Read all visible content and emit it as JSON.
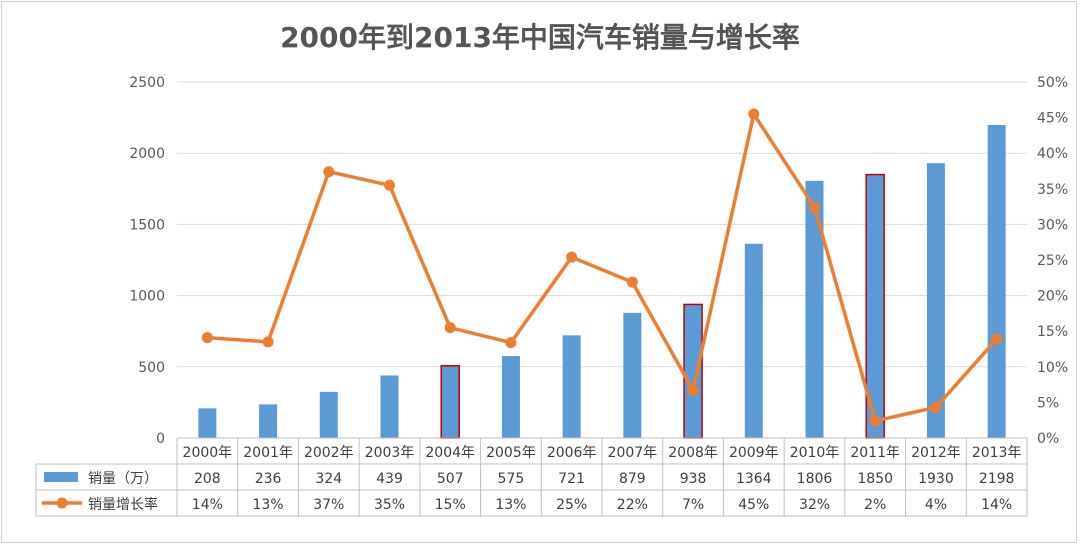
{
  "chart_data": {
    "type": "bar",
    "title": "2000年到2013年中国汽车销量与增长率",
    "categories": [
      "2000年",
      "2001年",
      "2002年",
      "2003年",
      "2004年",
      "2005年",
      "2006年",
      "2007年",
      "2008年",
      "2009年",
      "2010年",
      "2011年",
      "2012年",
      "2013年"
    ],
    "y_left": {
      "ylim": [
        0,
        2500
      ],
      "ticks": [
        "0",
        "500",
        "1000",
        "1500",
        "2000",
        "2500"
      ]
    },
    "y_right": {
      "ylim": [
        0,
        50
      ],
      "ticks": [
        "0%",
        "5%",
        "10%",
        "15%",
        "20%",
        "25%",
        "30%",
        "35%",
        "40%",
        "45%",
        "50%"
      ]
    },
    "series": [
      {
        "name": "销量（万）",
        "type": "bar",
        "axis": "left",
        "color": "#5b9bd5",
        "values": [
          208,
          236,
          324,
          439,
          507,
          575,
          721,
          879,
          938,
          1364,
          1806,
          1850,
          1930,
          2198
        ],
        "labels": [
          "208",
          "236",
          "324",
          "439",
          "507",
          "575",
          "721",
          "879",
          "938",
          "1364",
          "1806",
          "1850",
          "1930",
          "2198"
        ],
        "highlighted": [
          "2004年",
          "2008年",
          "2011年"
        ],
        "highlight_border_color": "#c00000"
      },
      {
        "name": "销量增长率",
        "type": "line",
        "axis": "right",
        "color": "#ed7d31",
        "values": [
          14.1,
          13.5,
          37.4,
          35.5,
          15.5,
          13.4,
          25.4,
          21.9,
          6.7,
          45.5,
          32.4,
          2.4,
          4.3,
          13.9
        ],
        "labels": [
          "14%",
          "13%",
          "37%",
          "35%",
          "15%",
          "13%",
          "25%",
          "22%",
          "7%",
          "45%",
          "32%",
          "2%",
          "4%",
          "14%"
        ]
      }
    ],
    "grid": true,
    "data_table": true
  }
}
